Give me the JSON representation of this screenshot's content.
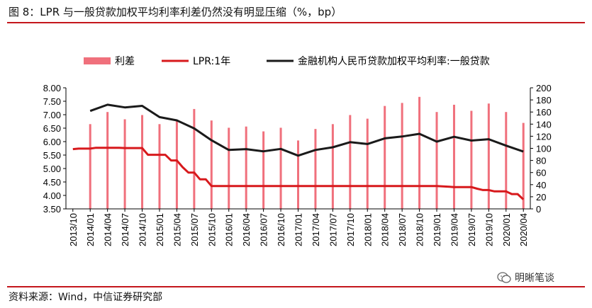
{
  "title": "图 8：LPR 与一般贷款加权平均利率利差仍然没有明显压缩（%，bp）",
  "source": "资料来源：Wind，中信证券研究部",
  "watermark": "明晰笔谈",
  "colors": {
    "bar": "#f0707c",
    "lpr": "#d7191c",
    "rate": "#1a1a1a",
    "rule": "#c4161c"
  },
  "chart_data": {
    "type": "bar+line",
    "legend": [
      "利差",
      "LPR:1年",
      "金融机构人民币贷款加权平均利率:一般贷款"
    ],
    "legend_position": "top",
    "x_tick_labels": [
      "2013/10",
      "2014/01",
      "2014/04",
      "2014/07",
      "2014/10",
      "2015/01",
      "2015/04",
      "2015/07",
      "2015/10",
      "2016/01",
      "2016/04",
      "2016/07",
      "2016/10",
      "2017/01",
      "2017/04",
      "2017/07",
      "2017/10",
      "2018/01",
      "2018/04",
      "2018/07",
      "2018/10",
      "2019/01",
      "2019/04",
      "2019/07",
      "2019/10",
      "2020/01",
      "2020/04"
    ],
    "left_axis": {
      "ylim": [
        3.5,
        8.0
      ],
      "ticks": [
        "3.50",
        "4.00",
        "4.50",
        "5.00",
        "5.50",
        "6.00",
        "6.50",
        "7.00",
        "7.50",
        "8.00"
      ]
    },
    "right_axis": {
      "ylim": [
        0,
        200
      ],
      "ticks": [
        "0",
        "20",
        "40",
        "60",
        "80",
        "100",
        "120",
        "140",
        "160",
        "180",
        "200"
      ]
    },
    "bars": {
      "name": "利差",
      "axis": "right",
      "x": [
        "2014/01",
        "2014/04",
        "2014/07",
        "2014/10",
        "2015/01",
        "2015/04",
        "2015/07",
        "2015/10",
        "2016/01",
        "2016/04",
        "2016/07",
        "2016/10",
        "2017/01",
        "2017/04",
        "2017/07",
        "2017/10",
        "2018/01",
        "2018/04",
        "2018/07",
        "2018/10",
        "2019/01",
        "2019/04",
        "2019/07",
        "2019/10",
        "2020/01",
        "2020/04"
      ],
      "values": [
        140,
        160,
        148,
        155,
        140,
        145,
        165,
        146,
        134,
        136,
        128,
        134,
        113,
        132,
        140,
        155,
        149,
        170,
        175,
        185,
        160,
        172,
        162,
        174,
        160,
        142
      ]
    },
    "lpr": {
      "name": "LPR:1年",
      "axis": "left",
      "x": [
        "2013/10",
        "2013/11",
        "2013/12",
        "2014/01",
        "2014/02",
        "2014/03",
        "2014/04",
        "2014/05",
        "2014/06",
        "2014/07",
        "2014/08",
        "2014/09",
        "2014/10",
        "2014/11",
        "2014/12",
        "2015/01",
        "2015/02",
        "2015/03",
        "2015/04",
        "2015/05",
        "2015/06",
        "2015/07",
        "2015/08",
        "2015/09",
        "2015/10",
        "2016/01",
        "2016/04",
        "2016/07",
        "2016/10",
        "2017/01",
        "2017/04",
        "2017/07",
        "2017/10",
        "2018/01",
        "2018/04",
        "2018/07",
        "2018/10",
        "2019/01",
        "2019/04",
        "2019/07",
        "2019/08",
        "2019/09",
        "2019/10",
        "2019/11",
        "2019/12",
        "2020/01",
        "2020/02",
        "2020/03",
        "2020/04"
      ],
      "values": [
        5.72,
        5.74,
        5.74,
        5.74,
        5.77,
        5.77,
        5.77,
        5.77,
        5.77,
        5.76,
        5.76,
        5.76,
        5.76,
        5.51,
        5.51,
        5.51,
        5.51,
        5.3,
        5.3,
        5.05,
        4.85,
        4.85,
        4.6,
        4.6,
        4.35,
        4.35,
        4.35,
        4.35,
        4.35,
        4.35,
        4.35,
        4.35,
        4.35,
        4.35,
        4.35,
        4.35,
        4.35,
        4.35,
        4.31,
        4.31,
        4.25,
        4.2,
        4.2,
        4.15,
        4.15,
        4.15,
        4.05,
        4.05,
        3.85
      ]
    },
    "loan_rate": {
      "name": "金融机构人民币贷款加权平均利率:一般贷款",
      "axis": "left",
      "x": [
        "2014/01",
        "2014/04",
        "2014/07",
        "2014/10",
        "2015/01",
        "2015/04",
        "2015/07",
        "2015/10",
        "2016/01",
        "2016/04",
        "2016/07",
        "2016/10",
        "2017/01",
        "2017/04",
        "2017/07",
        "2017/10",
        "2018/01",
        "2018/04",
        "2018/07",
        "2018/10",
        "2019/01",
        "2019/04",
        "2019/07",
        "2019/10",
        "2020/01",
        "2020/04"
      ],
      "values": [
        7.14,
        7.37,
        7.27,
        7.33,
        6.91,
        6.79,
        6.49,
        6.05,
        5.69,
        5.72,
        5.64,
        5.73,
        5.48,
        5.69,
        5.79,
        5.98,
        5.91,
        6.12,
        6.19,
        6.29,
        6.0,
        6.18,
        6.04,
        6.09,
        5.85,
        5.63
      ]
    }
  }
}
